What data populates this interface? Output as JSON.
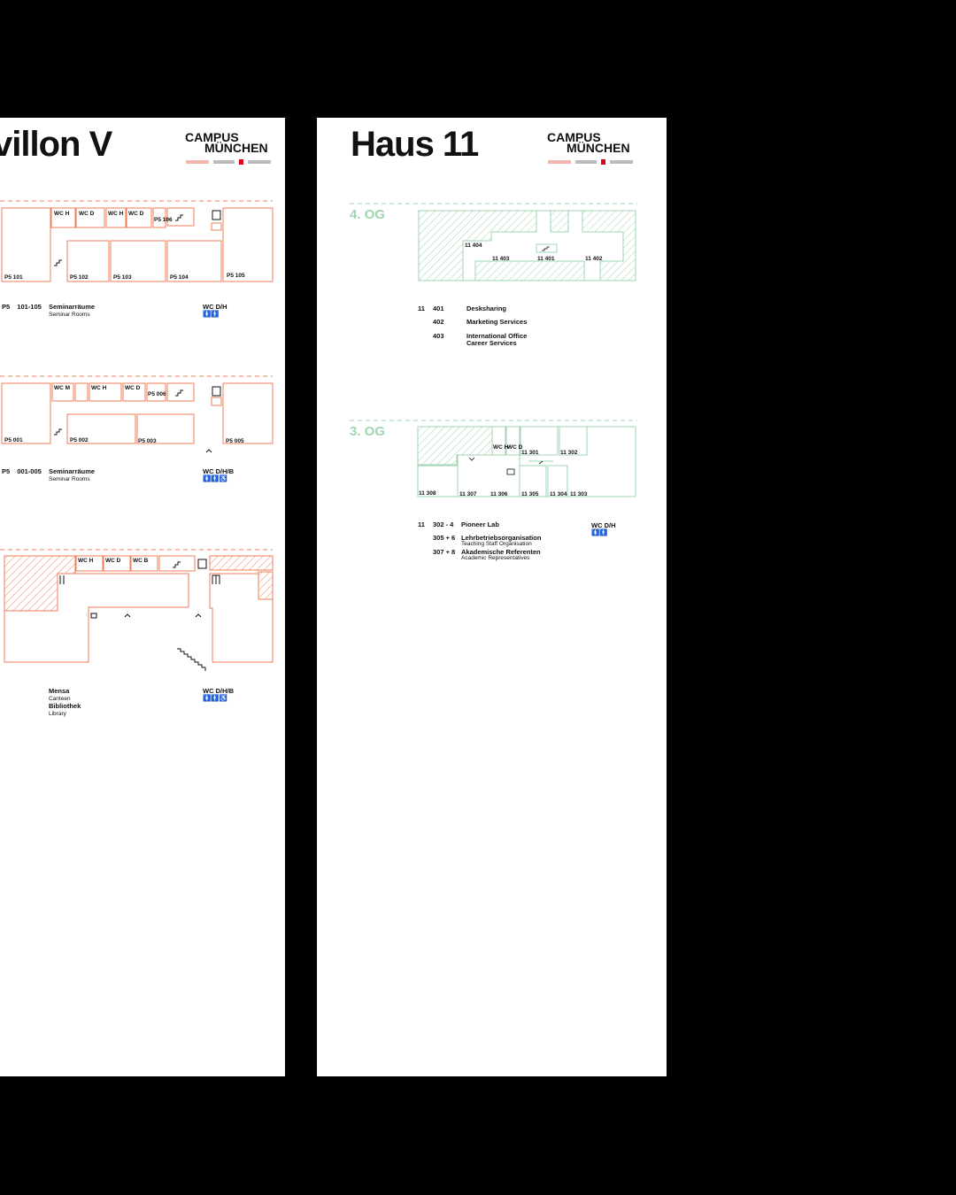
{
  "left_panel": {
    "title": "villon V",
    "logo": {
      "line1": "CAMPUS",
      "line2": "MÜNCHEN"
    },
    "floor_upper": {
      "rooms": [
        "P5 101",
        "WC H",
        "WC D",
        "WC H",
        "WC D",
        "P5 106",
        "P5 102",
        "P5 103",
        "P5 104",
        "P5 105"
      ],
      "legend": {
        "building": "P5",
        "rooms": "101-105",
        "name": "Seminarräume",
        "name_en": "Seminar Rooms",
        "wc": "WC D/H"
      }
    },
    "floor_ground": {
      "rooms": [
        "P5 001",
        "WC M",
        "WC H",
        "WC D",
        "P5 006",
        "P5 002",
        "P5 003",
        "P5 005"
      ],
      "legend": {
        "building": "P5",
        "rooms": "001-005",
        "name": "Seminarräume",
        "name_en": "Seminar Rooms",
        "wc": "WC D/H/B"
      }
    },
    "floor_lower": {
      "rooms": [
        "WC H",
        "WC D",
        "WC B"
      ],
      "legend": {
        "item1": "Mensa",
        "item1_en": "Canteen",
        "item2": "Bibliothek",
        "item2_en": "Library",
        "wc": "WC D/H/B"
      }
    }
  },
  "right_panel": {
    "title": "Haus 11",
    "logo": {
      "line1": "CAMPUS",
      "line2": "MÜNCHEN"
    },
    "floor_4": {
      "label": "4. OG",
      "rooms": [
        "11 404",
        "11 403",
        "11 401",
        "11 402"
      ],
      "legend": {
        "building": "11",
        "entries": [
          {
            "room": "401",
            "name": "Desksharing"
          },
          {
            "room": "402",
            "name": "Marketing Services"
          },
          {
            "room": "403",
            "name": "International Office",
            "name2": "Career Services"
          }
        ]
      }
    },
    "floor_3": {
      "label": "3. OG",
      "rooms": [
        "WC H",
        "WC D",
        "11 301",
        "11 302",
        "11 308",
        "11 307",
        "11 306",
        "11 305",
        "11 304",
        "11 303"
      ],
      "legend": {
        "building": "11",
        "wc": "WC D/H",
        "entries": [
          {
            "room": "302 - 4",
            "name": "Pioneer Lab"
          },
          {
            "room": "305 + 6",
            "name": "Lehrbetriebsorganisation",
            "name_en": "Teaching Staff Organisation"
          },
          {
            "room": "307 + 8",
            "name": "Akademische Referenten",
            "name_en": "Academic Representatives"
          }
        ]
      }
    }
  },
  "colors": {
    "orange": "#ee7d57",
    "green": "#9fd5b0",
    "brand_red": "#e2001a"
  }
}
